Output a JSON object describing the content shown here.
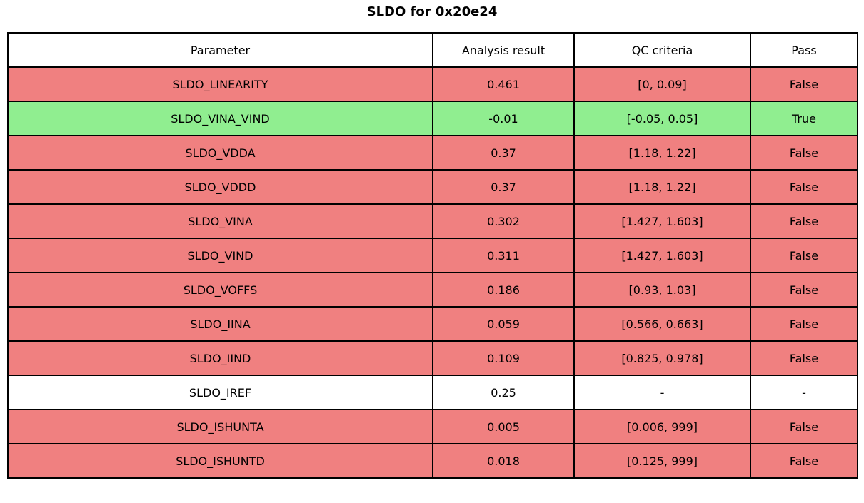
{
  "title": "SLDO for 0x20e24",
  "chart_data": {
    "type": "table",
    "title": "SLDO for 0x20e24",
    "columns": [
      "Parameter",
      "Analysis result",
      "QC criteria",
      "Pass"
    ],
    "rows": [
      {
        "parameter": "SLDO_LINEARITY",
        "result": "0.461",
        "criteria": "[0, 0.09]",
        "pass": "False",
        "status": "fail"
      },
      {
        "parameter": "SLDO_VINA_VIND",
        "result": "-0.01",
        "criteria": "[-0.05, 0.05]",
        "pass": "True",
        "status": "pass"
      },
      {
        "parameter": "SLDO_VDDA",
        "result": "0.37",
        "criteria": "[1.18, 1.22]",
        "pass": "False",
        "status": "fail"
      },
      {
        "parameter": "SLDO_VDDD",
        "result": "0.37",
        "criteria": "[1.18, 1.22]",
        "pass": "False",
        "status": "fail"
      },
      {
        "parameter": "SLDO_VINA",
        "result": "0.302",
        "criteria": "[1.427, 1.603]",
        "pass": "False",
        "status": "fail"
      },
      {
        "parameter": "SLDO_VIND",
        "result": "0.311",
        "criteria": "[1.427, 1.603]",
        "pass": "False",
        "status": "fail"
      },
      {
        "parameter": "SLDO_VOFFS",
        "result": "0.186",
        "criteria": "[0.93, 1.03]",
        "pass": "False",
        "status": "fail"
      },
      {
        "parameter": "SLDO_IINA",
        "result": "0.059",
        "criteria": "[0.566, 0.663]",
        "pass": "False",
        "status": "fail"
      },
      {
        "parameter": "SLDO_IIND",
        "result": "0.109",
        "criteria": "[0.825, 0.978]",
        "pass": "False",
        "status": "fail"
      },
      {
        "parameter": "SLDO_IREF",
        "result": "0.25",
        "criteria": "-",
        "pass": "-",
        "status": "none"
      },
      {
        "parameter": "SLDO_ISHUNTA",
        "result": "0.005",
        "criteria": "[0.006, 999]",
        "pass": "False",
        "status": "fail"
      },
      {
        "parameter": "SLDO_ISHUNTD",
        "result": "0.018",
        "criteria": "[0.125, 999]",
        "pass": "False",
        "status": "fail"
      }
    ],
    "status_colors": {
      "fail": "#f08080",
      "pass": "#90ee90",
      "none": "#ffffff"
    },
    "layout": {
      "grid": "on",
      "border_color": "#000000",
      "header_background": "#ffffff"
    }
  }
}
